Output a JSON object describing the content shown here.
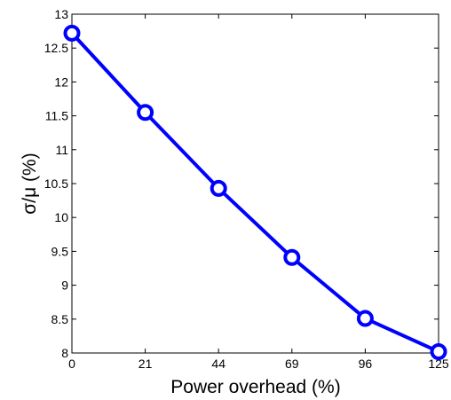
{
  "chart_data": {
    "type": "line",
    "title": "",
    "xlabel": "Power overhead (%)",
    "ylabel": "σ/μ (%)",
    "categories": [
      "0",
      "21",
      "44",
      "69",
      "96",
      "125"
    ],
    "series": [
      {
        "values": [
          12.72,
          11.55,
          10.43,
          9.41,
          8.51,
          8.02
        ]
      }
    ],
    "ylim": [
      8,
      13
    ],
    "yticks": [
      "8",
      "8.5",
      "9",
      "9.5",
      "10",
      "10.5",
      "11",
      "11.5",
      "12",
      "12.5",
      "13"
    ],
    "grid": false,
    "legend": "none",
    "line_color": "#0000ff"
  }
}
